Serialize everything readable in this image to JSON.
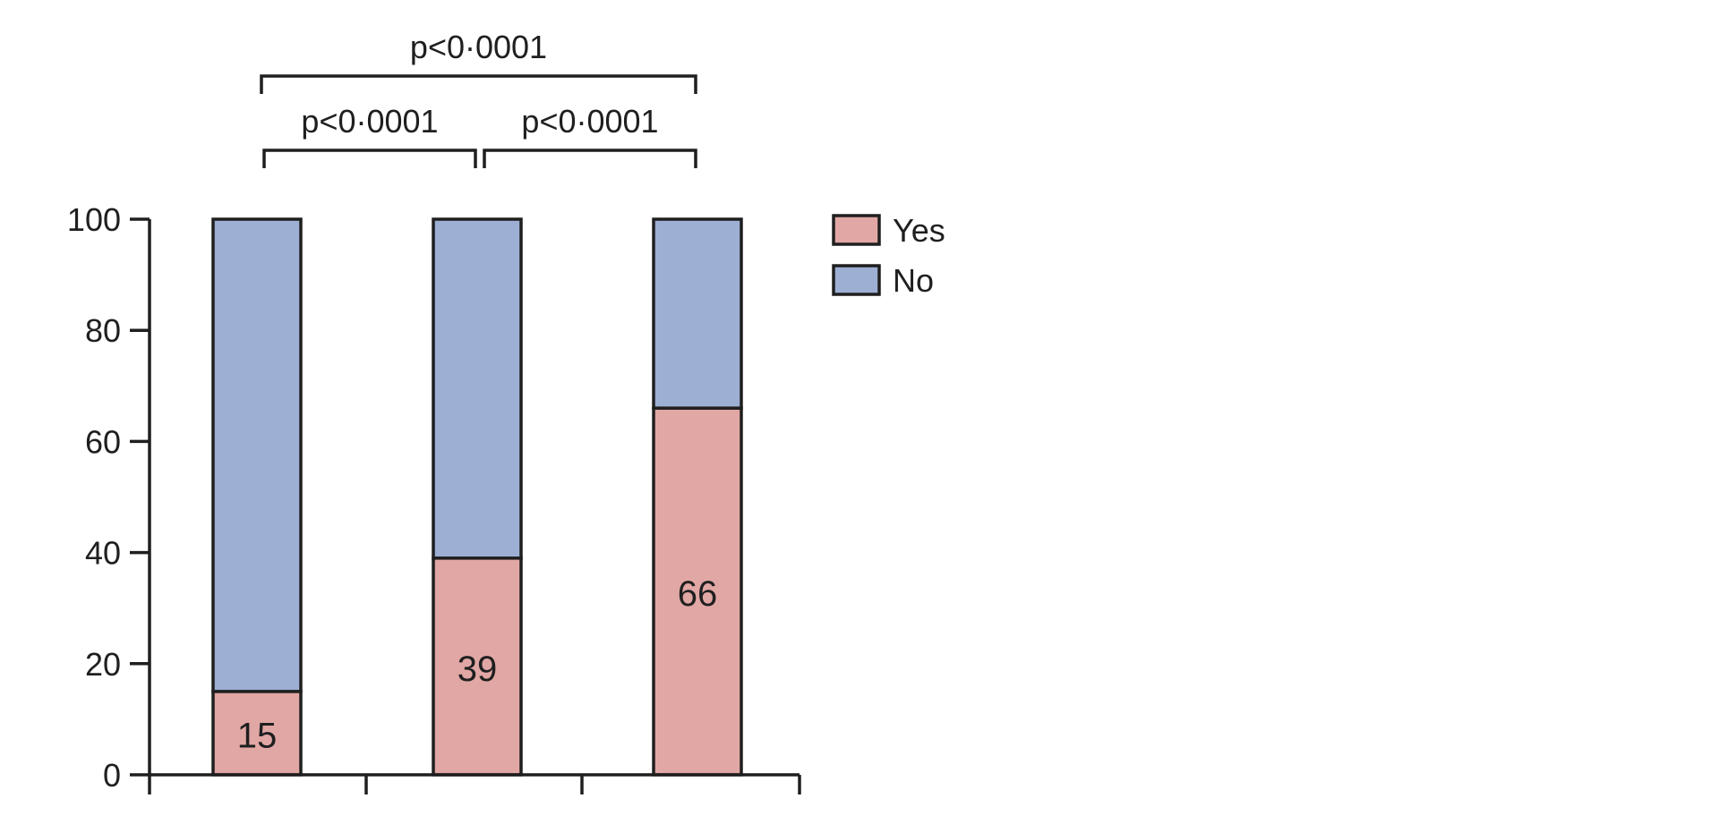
{
  "chart_data": {
    "type": "bar",
    "stacked": true,
    "categories": [
      "",
      "",
      ""
    ],
    "series": [
      {
        "name": "Yes",
        "values": [
          15,
          39,
          66
        ],
        "color": "#e1a7a4"
      },
      {
        "name": "No",
        "values": [
          85,
          61,
          34
        ],
        "color": "#9eafd4"
      }
    ],
    "data_labels": [
      "15",
      "39",
      "66"
    ],
    "ylim": [
      0,
      100
    ],
    "yticks": [
      "0",
      "20",
      "40",
      "60",
      "80",
      "100"
    ],
    "xlabel": "",
    "ylabel": "",
    "title": "",
    "legend": {
      "position": "top-right",
      "entries": [
        "Yes",
        "No"
      ]
    },
    "grid": false,
    "significance": [
      {
        "from": 0,
        "to": 2,
        "label": "p<0·0001"
      },
      {
        "from": 0,
        "to": 1,
        "label": "p<0·0001"
      },
      {
        "from": 1,
        "to": 2,
        "label": "p<0·0001"
      }
    ]
  }
}
